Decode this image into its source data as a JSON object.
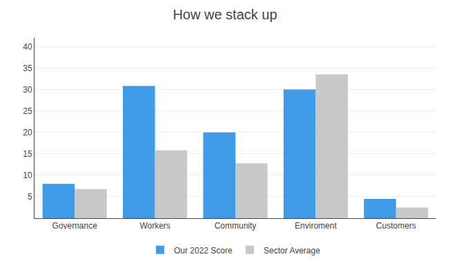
{
  "chart_data": {
    "type": "bar",
    "title": "How we stack up",
    "categories": [
      "Governance",
      "Workers",
      "Community",
      "Enviroment",
      "Customers"
    ],
    "series": [
      {
        "name": "Our 2022 Score",
        "color": "#3d9be9",
        "values": [
          8,
          30.8,
          20,
          30,
          4.5
        ]
      },
      {
        "name": "Sector Average",
        "color": "#c8c8c8",
        "values": [
          6.8,
          15.8,
          12.8,
          33.5,
          2.5
        ]
      }
    ],
    "ylim": [
      0,
      42
    ],
    "yticks": [
      5,
      10,
      15,
      20,
      25,
      30,
      35,
      40
    ],
    "grid": true,
    "legend": "bottom"
  }
}
